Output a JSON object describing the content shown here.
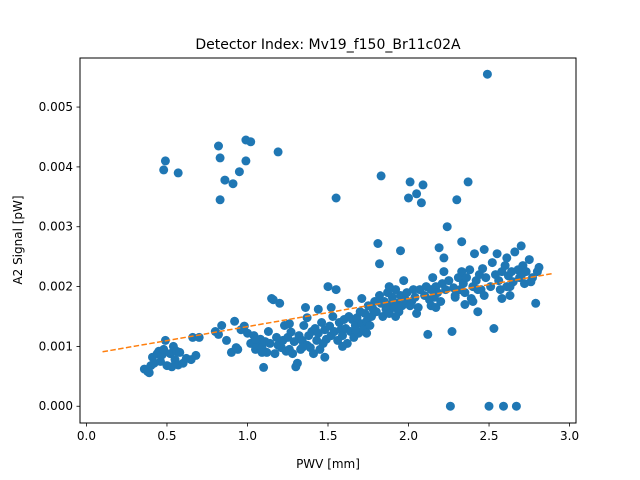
{
  "chart_data": {
    "type": "scatter",
    "title": "Detector Index: Mv19_f150_Br11c02A",
    "xlabel": "PWV [mm]",
    "ylabel": "A2 Signal [pW]",
    "xlim": [
      -0.04,
      3.04
    ],
    "ylim": [
      -0.00028,
      0.00582
    ],
    "xticks": [
      0.0,
      0.5,
      1.0,
      1.5,
      2.0,
      2.5,
      3.0
    ],
    "xtick_labels": [
      "0.0",
      "0.5",
      "1.0",
      "1.5",
      "2.0",
      "2.5",
      "3.0"
    ],
    "yticks": [
      0.0,
      0.001,
      0.002,
      0.003,
      0.004,
      0.005
    ],
    "ytick_labels": [
      "0.000",
      "0.001",
      "0.002",
      "0.003",
      "0.004",
      "0.005"
    ],
    "colors": {
      "points": "#1f77b4",
      "fit": "#ff7f0e"
    },
    "fit_line": {
      "x": [
        0.1,
        2.9
      ],
      "y": [
        0.00091,
        0.00222
      ]
    },
    "series": [
      {
        "name": "A2 Signal",
        "points": [
          [
            0.36,
            0.00062
          ],
          [
            0.38,
            0.00058
          ],
          [
            0.39,
            0.00056
          ],
          [
            0.4,
            0.00068
          ],
          [
            0.41,
            0.00082
          ],
          [
            0.42,
            0.00072
          ],
          [
            0.44,
            0.00088
          ],
          [
            0.45,
            0.00092
          ],
          [
            0.46,
            0.00075
          ],
          [
            0.47,
            0.00086
          ],
          [
            0.48,
            0.00095
          ],
          [
            0.49,
            0.0011
          ],
          [
            0.5,
            0.00068
          ],
          [
            0.52,
            0.00088
          ],
          [
            0.53,
            0.00066
          ],
          [
            0.54,
            0.001
          ],
          [
            0.55,
            0.00078
          ],
          [
            0.56,
            0.00092
          ],
          [
            0.57,
            0.00069
          ],
          [
            0.58,
            0.0009
          ],
          [
            0.6,
            0.00072
          ],
          [
            0.62,
            0.0008
          ],
          [
            0.65,
            0.00078
          ],
          [
            0.66,
            0.00115
          ],
          [
            0.68,
            0.00085
          ],
          [
            0.7,
            0.00115
          ],
          [
            0.8,
            0.00125
          ],
          [
            0.82,
            0.0012
          ],
          [
            0.84,
            0.00135
          ],
          [
            0.9,
            0.0009
          ],
          [
            0.92,
            0.00142
          ],
          [
            0.94,
            0.00095
          ],
          [
            0.96,
            0.00128
          ],
          [
            0.98,
            0.00134
          ],
          [
            1.0,
            0.00122
          ],
          [
            1.02,
            0.00105
          ],
          [
            1.04,
            0.00118
          ],
          [
            1.05,
            0.00095
          ],
          [
            1.06,
            0.00102
          ],
          [
            1.08,
            0.00112
          ],
          [
            1.09,
            0.00098
          ],
          [
            1.1,
            0.00065
          ],
          [
            1.11,
            0.00108
          ],
          [
            1.12,
            0.0009
          ],
          [
            1.13,
            0.00125
          ],
          [
            1.14,
            0.00105
          ],
          [
            1.15,
            0.0018
          ],
          [
            1.16,
            0.00178
          ],
          [
            1.17,
            0.00088
          ],
          [
            1.18,
            0.00115
          ],
          [
            1.19,
            0.00102
          ],
          [
            1.2,
            0.00172
          ],
          [
            1.21,
            0.00098
          ],
          [
            1.22,
            0.0011
          ],
          [
            1.23,
            0.00135
          ],
          [
            1.24,
            0.00092
          ],
          [
            1.25,
            0.00115
          ],
          [
            1.26,
            0.00095
          ],
          [
            1.27,
            0.00124
          ],
          [
            1.28,
            0.00088
          ],
          [
            1.29,
            0.00108
          ],
          [
            1.3,
            0.00066
          ],
          [
            1.31,
            0.00072
          ],
          [
            1.32,
            0.00118
          ],
          [
            1.33,
            0.00095
          ],
          [
            1.34,
            0.0011
          ],
          [
            1.35,
            0.00135
          ],
          [
            1.36,
            0.00165
          ],
          [
            1.37,
            0.00102
          ],
          [
            1.38,
            0.00118
          ],
          [
            1.39,
            0.00098
          ],
          [
            1.4,
            0.00125
          ],
          [
            1.41,
            0.00088
          ],
          [
            1.42,
            0.0013
          ],
          [
            1.43,
            0.0011
          ],
          [
            1.44,
            0.00122
          ],
          [
            1.45,
            0.00095
          ],
          [
            1.46,
            0.0014
          ],
          [
            1.47,
            0.00105
          ],
          [
            1.48,
            0.00128
          ],
          [
            1.49,
            0.00112
          ],
          [
            1.5,
            0.002
          ],
          [
            1.51,
            0.00134
          ],
          [
            1.52,
            0.00118
          ],
          [
            1.53,
            0.0015
          ],
          [
            1.54,
            0.00125
          ],
          [
            1.55,
            0.00195
          ],
          [
            1.56,
            0.0011
          ],
          [
            1.57,
            0.0014
          ],
          [
            1.58,
            0.00128
          ],
          [
            1.59,
            0.00118
          ],
          [
            1.6,
            0.00145
          ],
          [
            1.61,
            0.0013
          ],
          [
            1.62,
            0.00105
          ],
          [
            1.63,
            0.0015
          ],
          [
            1.64,
            0.00125
          ],
          [
            1.65,
            0.00145
          ],
          [
            1.66,
            0.00115
          ],
          [
            1.67,
            0.00135
          ],
          [
            1.68,
            0.00148
          ],
          [
            1.69,
            0.00122
          ],
          [
            1.7,
            0.00158
          ],
          [
            1.71,
            0.00138
          ],
          [
            1.72,
            0.00128
          ],
          [
            1.73,
            0.00155
          ],
          [
            1.74,
            0.00142
          ],
          [
            1.75,
            0.00168
          ],
          [
            1.76,
            0.00135
          ],
          [
            1.77,
            0.0015
          ],
          [
            1.78,
            0.00162
          ],
          [
            1.79,
            0.00175
          ],
          [
            1.8,
            0.00158
          ],
          [
            1.81,
            0.00272
          ],
          [
            1.82,
            0.00185
          ],
          [
            1.83,
            0.00385
          ],
          [
            1.84,
            0.0015
          ],
          [
            1.85,
            0.00175
          ],
          [
            1.86,
            0.00162
          ],
          [
            1.87,
            0.0019
          ],
          [
            1.88,
            0.00155
          ],
          [
            1.89,
            0.0017
          ],
          [
            1.9,
            0.00182
          ],
          [
            1.91,
            0.00165
          ],
          [
            1.92,
            0.00195
          ],
          [
            1.93,
            0.00172
          ],
          [
            1.94,
            0.00158
          ],
          [
            1.95,
            0.00185
          ],
          [
            1.96,
            0.00168
          ],
          [
            1.97,
            0.0021
          ],
          [
            1.98,
            0.00178
          ],
          [
            1.99,
            0.0019
          ],
          [
            2.0,
            0.00348
          ],
          [
            2.01,
            0.00375
          ],
          [
            2.02,
            0.00175
          ],
          [
            2.03,
            0.00195
          ],
          [
            2.04,
            0.00182
          ],
          [
            2.05,
            0.00355
          ],
          [
            2.06,
            0.00165
          ],
          [
            2.07,
            0.00195
          ],
          [
            2.08,
            0.0034
          ],
          [
            2.09,
            0.0037
          ],
          [
            2.1,
            0.00185
          ],
          [
            2.11,
            0.002
          ],
          [
            2.12,
            0.0012
          ],
          [
            2.13,
            0.00178
          ],
          [
            2.14,
            0.00195
          ],
          [
            2.15,
            0.00215
          ],
          [
            2.16,
            0.00182
          ],
          [
            2.17,
            0.002
          ],
          [
            2.18,
            0.0019
          ],
          [
            2.19,
            0.00265
          ],
          [
            2.2,
            0.00175
          ],
          [
            2.21,
            0.00205
          ],
          [
            2.22,
            0.00225
          ],
          [
            2.23,
            0.00195
          ],
          [
            2.24,
            0.003
          ],
          [
            2.25,
            0.0021
          ],
          [
            2.26,
            0.0
          ],
          [
            2.27,
            0.00125
          ],
          [
            2.28,
            0.00198
          ],
          [
            2.29,
            0.00185
          ],
          [
            2.3,
            0.00345
          ],
          [
            2.31,
            0.00215
          ],
          [
            2.32,
            0.00195
          ],
          [
            2.33,
            0.00225
          ],
          [
            2.34,
            0.00205
          ],
          [
            2.35,
            0.0019
          ],
          [
            2.36,
            0.00215
          ],
          [
            2.37,
            0.00375
          ],
          [
            2.38,
            0.00228
          ],
          [
            2.39,
            0.0018
          ],
          [
            2.4,
            0.002
          ],
          [
            2.41,
            0.00255
          ],
          [
            2.42,
            0.0021
          ],
          [
            2.43,
            0.00158
          ],
          [
            2.44,
            0.0022
          ],
          [
            2.45,
            0.00195
          ],
          [
            2.46,
            0.0023
          ],
          [
            2.47,
            0.00185
          ],
          [
            2.48,
            0.00215
          ],
          [
            2.49,
            0.00555
          ],
          [
            2.5,
            0.0
          ],
          [
            2.51,
            0.002
          ],
          [
            2.52,
            0.0024
          ],
          [
            2.53,
            0.0013
          ],
          [
            2.54,
            0.0022
          ],
          [
            2.55,
            0.00255
          ],
          [
            2.56,
            0.0021
          ],
          [
            2.57,
            0.00195
          ],
          [
            2.58,
            0.00225
          ],
          [
            2.59,
            0.0
          ],
          [
            2.6,
            0.00235
          ],
          [
            2.61,
            0.002
          ],
          [
            2.62,
            0.00218
          ],
          [
            2.63,
            0.00185
          ],
          [
            2.64,
            0.00225
          ],
          [
            2.65,
            0.00208
          ],
          [
            2.66,
            0.00258
          ],
          [
            2.67,
            0.0
          ],
          [
            2.68,
            0.00228
          ],
          [
            2.69,
            0.00215
          ],
          [
            2.7,
            0.00268
          ],
          [
            2.71,
            0.00235
          ],
          [
            2.72,
            0.00205
          ],
          [
            2.73,
            0.00225
          ],
          [
            2.75,
            0.00245
          ],
          [
            2.77,
            0.00215
          ],
          [
            2.79,
            0.00172
          ],
          [
            2.8,
            0.00225
          ],
          [
            2.81,
            0.00232
          ],
          [
            0.48,
            0.00395
          ],
          [
            0.49,
            0.0041
          ],
          [
            0.57,
            0.0039
          ],
          [
            0.82,
            0.00435
          ],
          [
            0.83,
            0.00415
          ],
          [
            0.83,
            0.00345
          ],
          [
            0.86,
            0.00378
          ],
          [
            0.91,
            0.00372
          ],
          [
            0.95,
            0.00392
          ],
          [
            0.99,
            0.0041
          ],
          [
            0.99,
            0.00445
          ],
          [
            1.02,
            0.00442
          ],
          [
            1.19,
            0.00425
          ],
          [
            1.55,
            0.00348
          ],
          [
            1.82,
            0.00238
          ],
          [
            1.95,
            0.0026
          ],
          [
            2.22,
            0.00248
          ],
          [
            2.33,
            0.00275
          ],
          [
            2.47,
            0.00262
          ],
          [
            1.63,
            0.00172
          ],
          [
            1.71,
            0.0018
          ],
          [
            1.88,
            0.002
          ],
          [
            2.05,
            0.00155
          ],
          [
            2.14,
            0.00168
          ],
          [
            2.35,
            0.0017
          ],
          [
            2.43,
            0.00195
          ],
          [
            2.58,
            0.0018
          ],
          [
            2.61,
            0.00248
          ],
          [
            1.44,
            0.00162
          ],
          [
            1.37,
            0.00148
          ],
          [
            1.26,
            0.00138
          ],
          [
            1.52,
            0.00165
          ],
          [
            1.83,
            0.00172
          ],
          [
            2.01,
            0.00168
          ],
          [
            2.29,
            0.00182
          ],
          [
            1.67,
            0.00128
          ],
          [
            1.92,
            0.0015
          ],
          [
            2.17,
            0.00165
          ],
          [
            2.4,
            0.00175
          ],
          [
            1.74,
            0.00122
          ],
          [
            1.59,
            0.001
          ],
          [
            1.34,
            0.00098
          ],
          [
            1.48,
            0.00082
          ],
          [
            1.05,
            0.00112
          ],
          [
            1.09,
            0.0009
          ],
          [
            0.87,
            0.0011
          ],
          [
            0.93,
            0.00098
          ],
          [
            2.63,
            0.002
          ],
          [
            2.7,
            0.00218
          ],
          [
            2.76,
            0.00208
          ]
        ]
      }
    ]
  }
}
